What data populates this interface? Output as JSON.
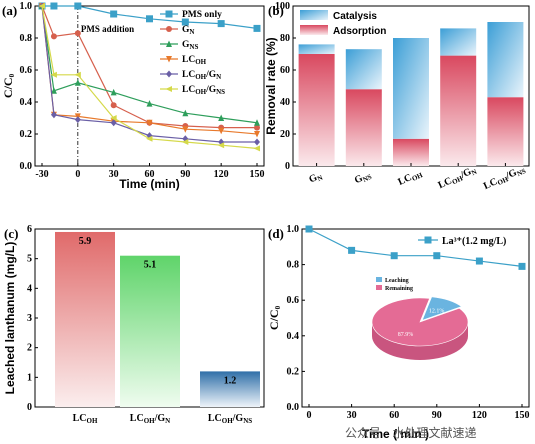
{
  "chart_data": [
    {
      "type": "line",
      "panel": "(a)",
      "xlabel": "Time (min)",
      "ylabel": "C/C₀",
      "xlim": [
        -30,
        150
      ],
      "ylim": [
        0.0,
        1.0
      ],
      "xticks": [
        "-30",
        "0",
        "30",
        "60",
        "90",
        "120",
        "150"
      ],
      "yticks": [
        "0.0",
        "0.2",
        "0.4",
        "0.6",
        "0.8",
        "1.0"
      ],
      "annotation": "PMS addition",
      "annotation_x": 0,
      "x": [
        -30,
        -20,
        0,
        30,
        60,
        90,
        120,
        150
      ],
      "series": [
        {
          "name": "PMS only",
          "color": "#3ba0c8",
          "marker": "square",
          "values": [
            1.0,
            1.0,
            1.0,
            0.95,
            0.92,
            0.9,
            0.89,
            0.86
          ]
        },
        {
          "name": "G_N",
          "color": "#d6604d",
          "marker": "circle",
          "values": [
            1.0,
            0.81,
            0.83,
            0.38,
            0.27,
            0.25,
            0.24,
            0.24
          ]
        },
        {
          "name": "G_NS",
          "color": "#2e9e5b",
          "marker": "triangle",
          "values": [
            1.0,
            0.47,
            0.52,
            0.46,
            0.39,
            0.33,
            0.3,
            0.27
          ]
        },
        {
          "name": "LC_OH",
          "color": "#e8792b",
          "marker": "triangle-down",
          "values": [
            1.0,
            0.32,
            0.31,
            0.28,
            0.27,
            0.23,
            0.22,
            0.2
          ]
        },
        {
          "name": "LC_OH/G_N",
          "color": "#6a5fa6",
          "marker": "diamond",
          "values": [
            1.0,
            0.32,
            0.29,
            0.27,
            0.19,
            0.17,
            0.15,
            0.15
          ]
        },
        {
          "name": "LC_OH/G_NS",
          "color": "#d5d94a",
          "marker": "triangle-left",
          "values": [
            1.0,
            0.57,
            0.57,
            0.3,
            0.17,
            0.15,
            0.13,
            0.11
          ]
        }
      ],
      "legend": [
        {
          "base": "PMS only",
          "sub": ""
        },
        {
          "base": "G",
          "sub": "N"
        },
        {
          "base": "G",
          "sub": "NS"
        },
        {
          "base": "LC",
          "sub": "OH"
        },
        {
          "base": "LC",
          "sub": "OH",
          "tail": "/G",
          "sub2": "N"
        },
        {
          "base": "LC",
          "sub": "OH",
          "tail": "/G",
          "sub2": "NS"
        }
      ]
    },
    {
      "type": "bar",
      "panel": "(b)",
      "ylabel": "Removal rate (%)",
      "ylim": [
        0,
        100
      ],
      "yticks": [
        "0",
        "20",
        "40",
        "60",
        "80",
        "100"
      ],
      "categories": [
        "G_N",
        "G_NS",
        "LC_OH",
        "LC_OH/G_N",
        "LC_OH/G_NS"
      ],
      "series": [
        {
          "name": "Adsorption",
          "color": "#d9485f",
          "values": [
            70,
            48,
            17,
            69,
            43
          ]
        },
        {
          "name": "Catalysis",
          "color": "#3b9ed6",
          "values": [
            6,
            25,
            63,
            17,
            47
          ]
        }
      ],
      "legend": [
        "Catalysis",
        "Adsorption"
      ]
    },
    {
      "type": "bar",
      "panel": "(c)",
      "ylabel": "Leached lanthanum (mg/L)",
      "ylim": [
        0,
        6
      ],
      "yticks": [
        "0",
        "1",
        "2",
        "3",
        "4",
        "5",
        "6"
      ],
      "categories": [
        "LC_OH",
        "LC_OH/G_N",
        "LC_OH/G_NS"
      ],
      "values": [
        5.9,
        5.1,
        1.2
      ],
      "value_labels": [
        "5.9",
        "5.1",
        "1.2"
      ],
      "colors": [
        "#e06a6a",
        "#5fd46a",
        "#2f6fa8"
      ]
    },
    {
      "type": "line",
      "panel": "(d)",
      "xlabel": "Time ( min )",
      "ylabel": "C/C₀",
      "xlim": [
        0,
        150
      ],
      "ylim": [
        0.0,
        1.0
      ],
      "xticks": [
        "0",
        "30",
        "60",
        "90",
        "120",
        "150"
      ],
      "yticks": [
        "0.0",
        "0.2",
        "0.4",
        "0.6",
        "0.8",
        "1.0"
      ],
      "x": [
        0,
        30,
        60,
        90,
        120,
        150
      ],
      "series": [
        {
          "name": "La³⁺(1.2 mg/L)",
          "color": "#3ba0c8",
          "values": [
            1.0,
            0.88,
            0.85,
            0.85,
            0.82,
            0.79
          ]
        }
      ],
      "inset_pie": {
        "slices": [
          {
            "name": "Leaching",
            "value": 12.1,
            "label": "12.1%",
            "color": "#6ab4e0"
          },
          {
            "name": "Remaining",
            "value": 87.9,
            "label": "87.9%",
            "color": "#e46b95"
          }
        ]
      }
    }
  ],
  "watermark": "公众号 · 水处理文献速递"
}
